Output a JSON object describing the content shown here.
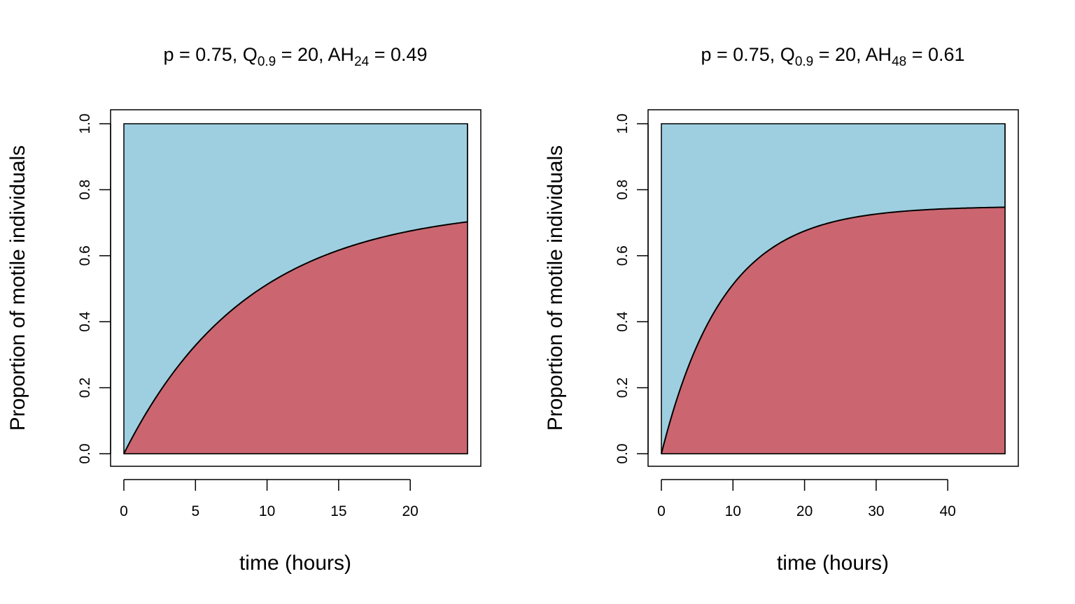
{
  "chart_data": [
    {
      "type": "area",
      "title_parts": [
        "p = 0.75, Q",
        "0.9",
        " = 20, AH",
        "24",
        " = 0.49"
      ],
      "xlabel": "time (hours)",
      "ylabel": "Proportion of motile individuals",
      "xlim": [
        0,
        24
      ],
      "ylim": [
        0,
        1
      ],
      "x_ticks": [
        0,
        5,
        10,
        15,
        20
      ],
      "y_ticks": [
        0.0,
        0.2,
        0.4,
        0.6,
        0.8,
        1.0
      ],
      "y_tick_labels": [
        "0.0",
        "0.2",
        "0.4",
        "0.6",
        "0.8",
        "1.0"
      ],
      "grid": false,
      "legend": "none",
      "colors": {
        "upper": "#9ecfe0",
        "lower": "#cb6670"
      },
      "p": 0.75,
      "q09": 20,
      "x": [
        0,
        2,
        4,
        6,
        8,
        10,
        12,
        14,
        16,
        18,
        20,
        22,
        24
      ],
      "series": [
        {
          "values": [
            0.0,
            0.156,
            0.28,
            0.378,
            0.456,
            0.517,
            0.566,
            0.604,
            0.634,
            0.659,
            0.678,
            0.693,
            0.705
          ]
        }
      ]
    },
    {
      "type": "area",
      "title_parts": [
        "p = 0.75, Q",
        "0.9",
        " = 20, AH",
        "48",
        " = 0.61"
      ],
      "xlabel": "time (hours)",
      "ylabel": "Proportion of motile individuals",
      "xlim": [
        0,
        48
      ],
      "ylim": [
        0,
        1
      ],
      "x_ticks": [
        0,
        10,
        20,
        30,
        40
      ],
      "y_ticks": [
        0.0,
        0.2,
        0.4,
        0.6,
        0.8,
        1.0
      ],
      "y_tick_labels": [
        "0.0",
        "0.2",
        "0.4",
        "0.6",
        "0.8",
        "1.0"
      ],
      "grid": false,
      "legend": "none",
      "colors": {
        "upper": "#9ecfe0",
        "lower": "#cb6670"
      },
      "p": 0.75,
      "q09": 20,
      "x": [
        0,
        4,
        8,
        12,
        16,
        20,
        24,
        28,
        32,
        36,
        40,
        44,
        48
      ],
      "series": [
        {
          "values": [
            0.0,
            0.287,
            0.463,
            0.571,
            0.637,
            0.677,
            0.702,
            0.717,
            0.727,
            0.733,
            0.736,
            0.738,
            0.74
          ]
        }
      ]
    }
  ]
}
